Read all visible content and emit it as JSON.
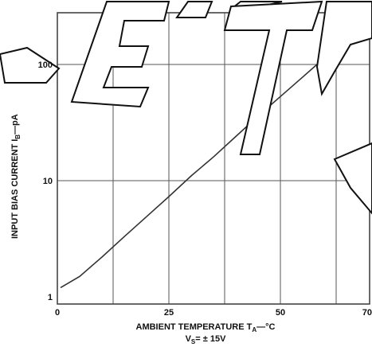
{
  "chart_data": {
    "type": "line",
    "title": "",
    "xlabel_main": "AMBIENT TEMPERATURE T",
    "xlabel_sub": "A",
    "xlabel_unit": "—°C",
    "xlabel_note_main": "V",
    "xlabel_note_sub": "S",
    "xlabel_note_rest": "= ± 15V",
    "ylabel": "INPUT BIAS CURRENT I",
    "ylabel_sub": "B",
    "ylabel_unit": "—pA",
    "xlim": [
      0,
      70
    ],
    "ylim": [
      1,
      300
    ],
    "yscale": "log",
    "grid": true,
    "x_ticks": [
      0,
      25,
      50,
      70
    ],
    "y_ticks": [
      1,
      10,
      100
    ],
    "x_tick_labels": [
      "0",
      "25",
      "50",
      "70"
    ],
    "y_tick_labels": [
      "1",
      "10",
      "100"
    ],
    "series": [
      {
        "x": [
          0,
          5,
          10,
          15,
          20,
          25,
          30,
          35,
          40,
          45,
          50,
          55,
          60,
          65,
          70
        ],
        "y": [
          1.2,
          1.5,
          2.2,
          3.3,
          4.9,
          7.3,
          11,
          16,
          24,
          36,
          53,
          78,
          115,
          170,
          245
        ]
      }
    ]
  }
}
